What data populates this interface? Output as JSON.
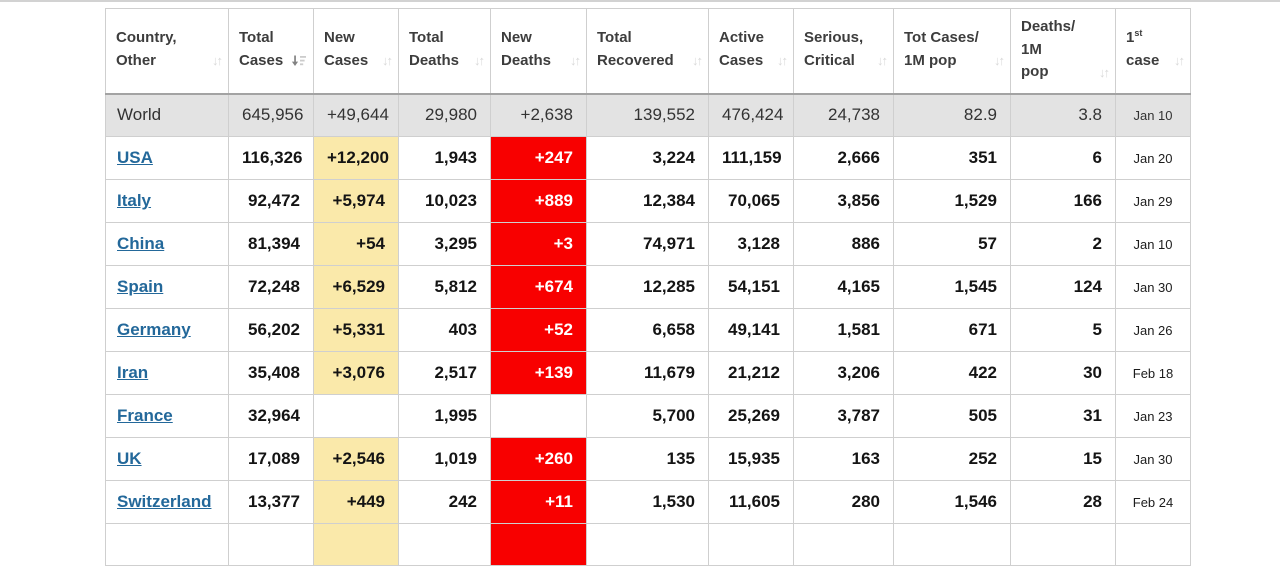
{
  "colors": {
    "new_cases_bg": "#FAE9AA",
    "new_deaths_bg": "#F80000",
    "world_row_bg": "#E3E3E3",
    "link": "#23689A",
    "header_text": "#3D3D3D",
    "top_line": "#D2D2D2"
  },
  "icons": {
    "sort_toggle_glyph": "↓↑",
    "sort_toggle_name": "sort-toggle-icon",
    "sort_desc_name": "sort-descending-icon"
  },
  "table": {
    "columns": [
      {
        "id": "country",
        "label_lines": [
          "Country,",
          "Other"
        ],
        "sort_state": "none"
      },
      {
        "id": "total_cases",
        "label_lines": [
          "Total",
          "Cases"
        ],
        "sort_state": "desc"
      },
      {
        "id": "new_cases",
        "label_lines": [
          "New",
          "Cases"
        ],
        "sort_state": "none"
      },
      {
        "id": "total_deaths",
        "label_lines": [
          "Total",
          "Deaths"
        ],
        "sort_state": "none"
      },
      {
        "id": "new_deaths",
        "label_lines": [
          "New",
          "Deaths"
        ],
        "sort_state": "none"
      },
      {
        "id": "total_recovered",
        "label_lines": [
          "Total",
          "Recovered"
        ],
        "sort_state": "none"
      },
      {
        "id": "active_cases",
        "label_lines": [
          "Active",
          "Cases"
        ],
        "sort_state": "none"
      },
      {
        "id": "serious_critical",
        "label_lines": [
          "Serious,",
          "Critical"
        ],
        "sort_state": "none"
      },
      {
        "id": "cases_per_1m",
        "label_lines": [
          "Tot Cases/",
          "1M pop"
        ],
        "sort_state": "none"
      },
      {
        "id": "deaths_per_1m",
        "label_lines": [
          "Deaths/",
          "1M",
          "pop"
        ],
        "sort_state": "none"
      },
      {
        "id": "first_case",
        "label_lines": [
          "1",
          "case"
        ],
        "sup": "st",
        "sort_state": "none"
      }
    ],
    "world_row": {
      "country": "World",
      "total_cases": "645,956",
      "new_cases": "+49,644",
      "total_deaths": "29,980",
      "new_deaths": "+2,638",
      "total_recovered": "139,552",
      "active_cases": "476,424",
      "serious_critical": "24,738",
      "cases_per_1m": "82.9",
      "deaths_per_1m": "3.8",
      "first_case": "Jan 10"
    },
    "rows": [
      {
        "country": "USA",
        "total_cases": "116,326",
        "new_cases": "+12,200",
        "total_deaths": "1,943",
        "new_deaths": "+247",
        "total_recovered": "3,224",
        "active_cases": "111,159",
        "serious_critical": "2,666",
        "cases_per_1m": "351",
        "deaths_per_1m": "6",
        "first_case": "Jan 20"
      },
      {
        "country": "Italy",
        "total_cases": "92,472",
        "new_cases": "+5,974",
        "total_deaths": "10,023",
        "new_deaths": "+889",
        "total_recovered": "12,384",
        "active_cases": "70,065",
        "serious_critical": "3,856",
        "cases_per_1m": "1,529",
        "deaths_per_1m": "166",
        "first_case": "Jan 29"
      },
      {
        "country": "China",
        "total_cases": "81,394",
        "new_cases": "+54",
        "total_deaths": "3,295",
        "new_deaths": "+3",
        "total_recovered": "74,971",
        "active_cases": "3,128",
        "serious_critical": "886",
        "cases_per_1m": "57",
        "deaths_per_1m": "2",
        "first_case": "Jan 10"
      },
      {
        "country": "Spain",
        "total_cases": "72,248",
        "new_cases": "+6,529",
        "total_deaths": "5,812",
        "new_deaths": "+674",
        "total_recovered": "12,285",
        "active_cases": "54,151",
        "serious_critical": "4,165",
        "cases_per_1m": "1,545",
        "deaths_per_1m": "124",
        "first_case": "Jan 30"
      },
      {
        "country": "Germany",
        "total_cases": "56,202",
        "new_cases": "+5,331",
        "total_deaths": "403",
        "new_deaths": "+52",
        "total_recovered": "6,658",
        "active_cases": "49,141",
        "serious_critical": "1,581",
        "cases_per_1m": "671",
        "deaths_per_1m": "5",
        "first_case": "Jan 26"
      },
      {
        "country": "Iran",
        "total_cases": "35,408",
        "new_cases": "+3,076",
        "total_deaths": "2,517",
        "new_deaths": "+139",
        "total_recovered": "11,679",
        "active_cases": "21,212",
        "serious_critical": "3,206",
        "cases_per_1m": "422",
        "deaths_per_1m": "30",
        "first_case": "Feb 18"
      },
      {
        "country": "France",
        "total_cases": "32,964",
        "new_cases": "",
        "total_deaths": "1,995",
        "new_deaths": "",
        "total_recovered": "5,700",
        "active_cases": "25,269",
        "serious_critical": "3,787",
        "cases_per_1m": "505",
        "deaths_per_1m": "31",
        "first_case": "Jan 23"
      },
      {
        "country": "UK",
        "total_cases": "17,089",
        "new_cases": "+2,546",
        "total_deaths": "1,019",
        "new_deaths": "+260",
        "total_recovered": "135",
        "active_cases": "15,935",
        "serious_critical": "163",
        "cases_per_1m": "252",
        "deaths_per_1m": "15",
        "first_case": "Jan 30"
      },
      {
        "country": "Switzerland",
        "total_cases": "13,377",
        "new_cases": "+449",
        "total_deaths": "242",
        "new_deaths": "+11",
        "total_recovered": "1,530",
        "active_cases": "11,605",
        "serious_critical": "280",
        "cases_per_1m": "1,546",
        "deaths_per_1m": "28",
        "first_case": "Feb 24"
      }
    ],
    "partial_row": {
      "new_cases_highlight": true,
      "new_deaths_highlight": true
    }
  }
}
